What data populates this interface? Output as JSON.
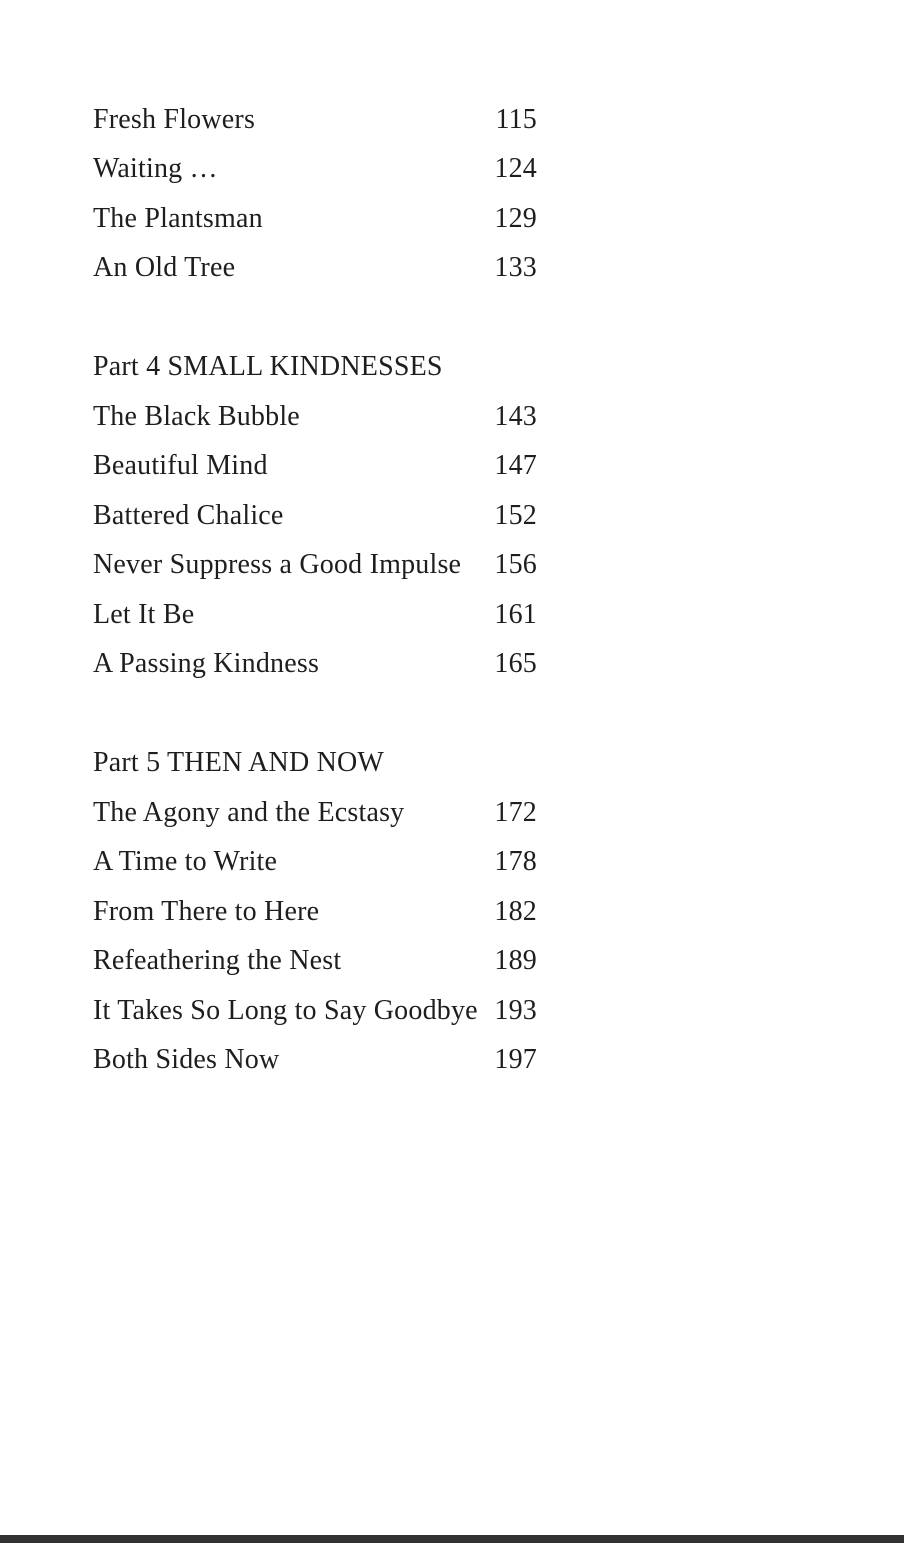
{
  "page": {
    "background_color": "#ffffff",
    "text_color": "#1e1e1e",
    "bottom_bar_color": "#323232"
  },
  "toc": {
    "sections": [
      {
        "heading": null,
        "entries": [
          {
            "title": "Fresh Flowers",
            "page": "115"
          },
          {
            "title": "Waiting …",
            "page": "124"
          },
          {
            "title": "The Plantsman",
            "page": "129"
          },
          {
            "title": "An Old Tree",
            "page": "133"
          }
        ]
      },
      {
        "heading": "Part 4 SMALL KINDNESSES",
        "entries": [
          {
            "title": "The Black Bubble",
            "page": "143"
          },
          {
            "title": "Beautiful Mind",
            "page": "147"
          },
          {
            "title": "Battered Chalice",
            "page": "152"
          },
          {
            "title": "Never Suppress a Good Impulse",
            "page": "156"
          },
          {
            "title": "Let It Be",
            "page": "161"
          },
          {
            "title": "A Passing Kindness",
            "page": "165"
          }
        ]
      },
      {
        "heading": "Part 5 THEN AND NOW",
        "entries": [
          {
            "title": "The Agony and the Ecstasy",
            "page": "172"
          },
          {
            "title": "A Time to Write",
            "page": "178"
          },
          {
            "title": "From There to Here",
            "page": "182"
          },
          {
            "title": "Refeathering the Nest",
            "page": "189"
          },
          {
            "title": "It Takes So Long to Say Goodbye",
            "page": "193"
          },
          {
            "title": "Both Sides Now",
            "page": "197"
          }
        ]
      }
    ]
  }
}
